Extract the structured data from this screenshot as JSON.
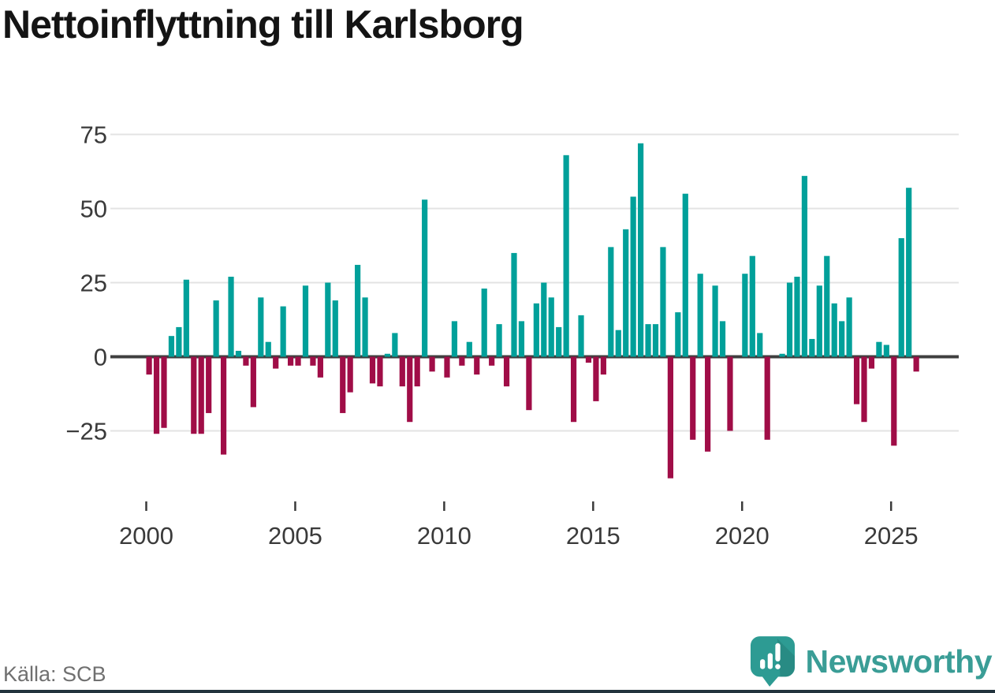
{
  "title": "Nettoinflyttning till Karlsborg",
  "source": {
    "label": "Källa: SCB"
  },
  "branding": {
    "name": "Newsworthy"
  },
  "colors": {
    "positive_bar": "#00a09a",
    "negative_bar": "#a00d47",
    "zero_line": "#3f3f3f",
    "gridline": "#e3e3e3",
    "axis_text": "#3a3a3a",
    "title_text": "#141414",
    "source_text": "#707070",
    "brand_teal": "#3a9d96",
    "logo_bubble": "#2d9b93",
    "bottom_accent": "#22333d"
  },
  "chart_data": {
    "type": "bar",
    "title": "Nettoinflyttning till Karlsborg",
    "x_unit": "quarter",
    "x_range": [
      "2000 Q1",
      "2025 Q4"
    ],
    "x_tick_labels": [
      "2000",
      "2005",
      "2010",
      "2015",
      "2020",
      "2025"
    ],
    "x_tick_years": [
      2000,
      2005,
      2010,
      2015,
      2020,
      2025
    ],
    "y_ticks": [
      75,
      50,
      25,
      0,
      -25
    ],
    "y_tick_labels": [
      "75",
      "50",
      "25",
      "0",
      "−25"
    ],
    "ylim": [
      -45,
      80
    ],
    "grid": true,
    "legend": false,
    "series": [
      {
        "year": 2000,
        "values": [
          -6,
          -26,
          -24,
          7
        ]
      },
      {
        "year": 2001,
        "values": [
          10,
          26,
          -26,
          -26
        ]
      },
      {
        "year": 2002,
        "values": [
          -19,
          19,
          -33,
          27
        ]
      },
      {
        "year": 2003,
        "values": [
          2,
          -3,
          -17,
          20
        ]
      },
      {
        "year": 2004,
        "values": [
          5,
          -4,
          17,
          -3
        ]
      },
      {
        "year": 2005,
        "values": [
          -3,
          24,
          -3,
          -7
        ]
      },
      {
        "year": 2006,
        "values": [
          25,
          19,
          -19,
          -12
        ]
      },
      {
        "year": 2007,
        "values": [
          31,
          20,
          -9,
          -10
        ]
      },
      {
        "year": 2008,
        "values": [
          1,
          8,
          -10,
          -22
        ]
      },
      {
        "year": 2009,
        "values": [
          -10,
          53,
          -5,
          0
        ]
      },
      {
        "year": 2010,
        "values": [
          -7,
          12,
          -3,
          5
        ]
      },
      {
        "year": 2011,
        "values": [
          -6,
          23,
          -3,
          11
        ]
      },
      {
        "year": 2012,
        "values": [
          -10,
          35,
          12,
          -18
        ]
      },
      {
        "year": 2013,
        "values": [
          18,
          25,
          20,
          10
        ]
      },
      {
        "year": 2014,
        "values": [
          68,
          -22,
          14,
          -2
        ]
      },
      {
        "year": 2015,
        "values": [
          -15,
          -6,
          37,
          9
        ]
      },
      {
        "year": 2016,
        "values": [
          43,
          54,
          72,
          11
        ]
      },
      {
        "year": 2017,
        "values": [
          11,
          37,
          -41,
          15
        ]
      },
      {
        "year": 2018,
        "values": [
          55,
          -28,
          28,
          -32
        ]
      },
      {
        "year": 2019,
        "values": [
          24,
          12,
          -25,
          0
        ]
      },
      {
        "year": 2020,
        "values": [
          28,
          34,
          8,
          -28
        ]
      },
      {
        "year": 2021,
        "values": [
          0,
          1,
          25,
          27
        ]
      },
      {
        "year": 2022,
        "values": [
          61,
          6,
          24,
          34
        ]
      },
      {
        "year": 2023,
        "values": [
          18,
          12,
          20,
          -16
        ]
      },
      {
        "year": 2024,
        "values": [
          -22,
          -4,
          5,
          4
        ]
      },
      {
        "year": 2025,
        "values": [
          -30,
          40,
          57,
          -5
        ]
      }
    ]
  }
}
